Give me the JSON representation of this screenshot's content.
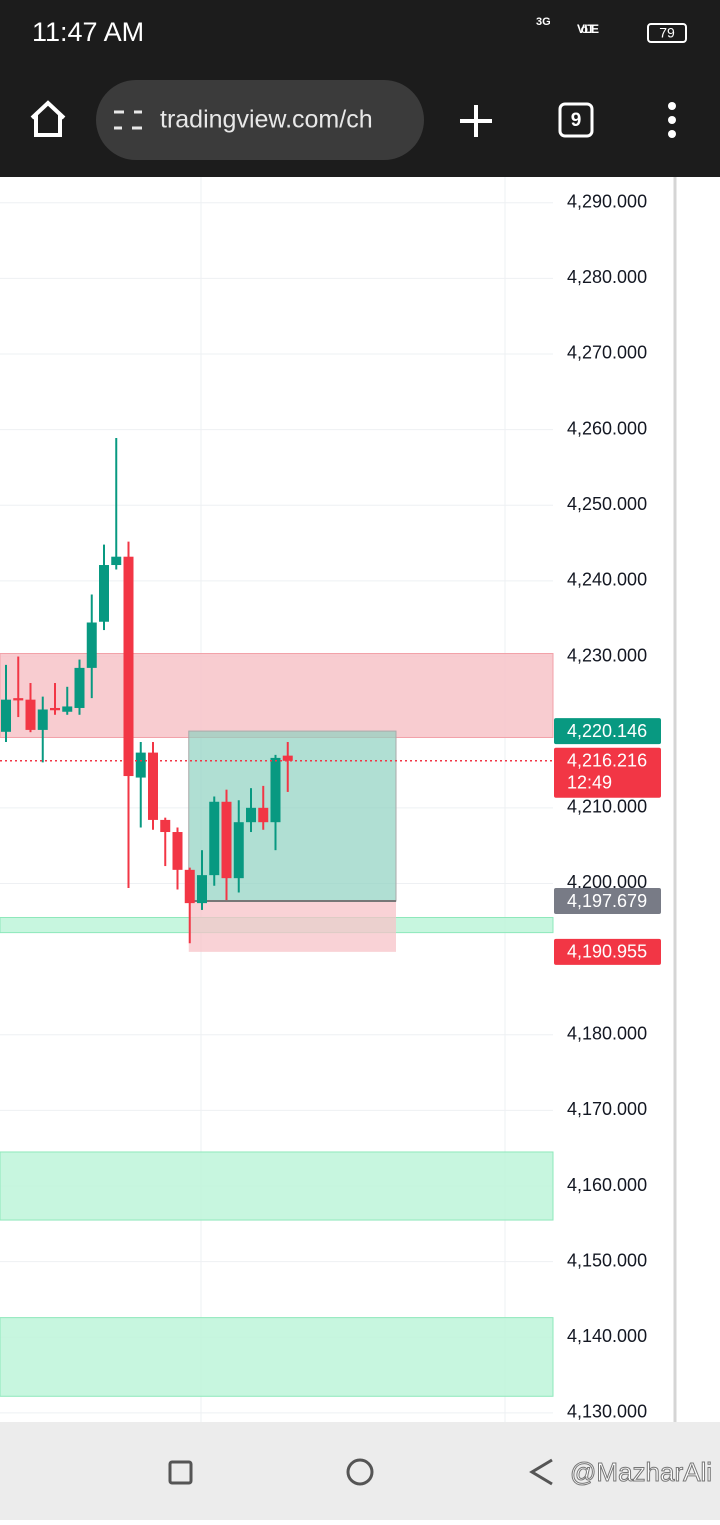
{
  "status_bar": {
    "time": "11:47 AM",
    "network": "3G",
    "volte": "Vo LTE",
    "battery": "79"
  },
  "browser_bar": {
    "url": "tradingview.com/ch",
    "tab_count": "9"
  },
  "chart_data": {
    "type": "candlestick",
    "up_color": "#089981",
    "down_color": "#f23645",
    "ylim": [
      4128.8,
      4293.4
    ],
    "yticks": [
      {
        "value": 4290,
        "label": "4,290.000"
      },
      {
        "value": 4280,
        "label": "4,280.000"
      },
      {
        "value": 4270,
        "label": "4,270.000"
      },
      {
        "value": 4260,
        "label": "4,260.000"
      },
      {
        "value": 4250,
        "label": "4,250.000"
      },
      {
        "value": 4240,
        "label": "4,240.000"
      },
      {
        "value": 4230,
        "label": "4,230.000"
      },
      {
        "value": 4210,
        "label": "4,210.000"
      },
      {
        "value": 4200,
        "label": "4,200.000"
      },
      {
        "value": 4180,
        "label": "4,180.000"
      },
      {
        "value": 4170,
        "label": "4,170.000"
      },
      {
        "value": 4160,
        "label": "4,160.000"
      },
      {
        "value": 4150,
        "label": "4,150.000"
      },
      {
        "value": 4140,
        "label": "4,140.000"
      },
      {
        "value": 4130,
        "label": "4,130.000"
      }
    ],
    "grid": true,
    "open": [
      4220.05,
      4224.5,
      4224.3,
      4220.3,
      4223.2,
      4222.7,
      4223.2,
      4228.5,
      4234.6,
      4242.1,
      4243.2,
      4214,
      4217.3,
      4208.4,
      4206.8,
      4201.8,
      4197.4,
      4201.1,
      4210.8,
      4200.7,
      4208.1,
      4210,
      4208.1,
      4216.9
    ],
    "high": [
      4228.9,
      4230,
      4226.5,
      4224.7,
      4226.5,
      4226,
      4229.6,
      4238.2,
      4244.8,
      4258.9,
      4245.2,
      4218.7,
      4218.7,
      4208.7,
      4207.4,
      4202.1,
      4204.4,
      4211.5,
      4212.4,
      4211,
      4212.6,
      4212.9,
      4217,
      4218.7
    ],
    "low": [
      4218.7,
      4222,
      4220,
      4216,
      4222.3,
      4222.3,
      4222.3,
      4224.5,
      4233.5,
      4241.5,
      4199.4,
      4207.4,
      4207.1,
      4202.3,
      4199.2,
      4192.1,
      4196.5,
      4199.7,
      4197.8,
      4198.8,
      4206.8,
      4207.1,
      4204.4,
      4212.1
    ],
    "close": [
      4224.3,
      4224.2,
      4220.3,
      4223,
      4222.9,
      4223.4,
      4228.5,
      4234.5,
      4242.1,
      4243.2,
      4214.2,
      4217.3,
      4208.4,
      4206.8,
      4201.8,
      4197.4,
      4201.1,
      4210.8,
      4200.7,
      4208.1,
      4210,
      4208.1,
      4216.6,
      4216.216
    ],
    "zones": [
      {
        "low": 4219.3,
        "high": 4230.4,
        "color": "#f7c3c8"
      },
      {
        "low": 4193.5,
        "high": 4195.5,
        "color": "#bdf5d9"
      },
      {
        "low": 4155.5,
        "high": 4164.5,
        "color": "#bdf5d9"
      },
      {
        "low": 4132.2,
        "high": 4142.6,
        "color": "#bdf5d9"
      }
    ],
    "position": {
      "entry": 4197.679,
      "target": 4220.146,
      "stop": 4190.955
    },
    "price_tags": [
      {
        "value": 4220.146,
        "label": "4,220.146",
        "color": "#089981"
      },
      {
        "value": 4197.679,
        "label": "4,197.679",
        "color": "#787b86"
      },
      {
        "value": 4190.955,
        "label": "4,190.955",
        "color": "#f23645"
      }
    ],
    "last_price": {
      "value": 4216.216,
      "label": "4,216.216",
      "countdown": "12:49",
      "color": "#f23645"
    }
  },
  "watermark": "@MazharAli"
}
